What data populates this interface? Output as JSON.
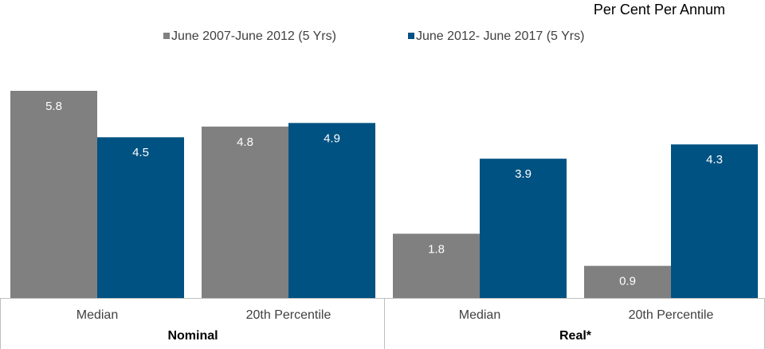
{
  "chart_data": {
    "type": "bar",
    "subtitle": "Per Cent Per Annum",
    "categories": [
      "Median",
      "20th Percentile",
      "Median",
      "20th Percentile"
    ],
    "groups": [
      "Nominal",
      "Real*"
    ],
    "series": [
      {
        "name": "June 2007-June 2012 (5 Yrs)",
        "color": "#808080",
        "values": [
          5.8,
          4.8,
          1.8,
          0.9
        ]
      },
      {
        "name": "June 2012- June 2017 (5 Yrs)",
        "color": "#005282",
        "values": [
          4.5,
          4.9,
          3.9,
          4.3
        ]
      }
    ],
    "legend": "top"
  }
}
